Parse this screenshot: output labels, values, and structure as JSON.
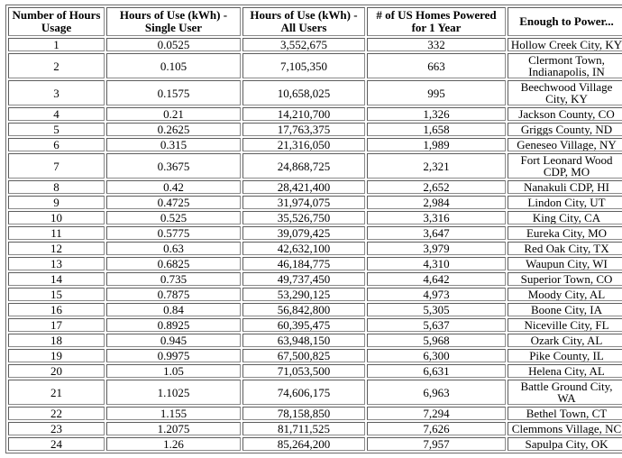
{
  "chart_data": {
    "type": "table",
    "title": "",
    "columns": [
      "Number of Hours Usage",
      "Hours of Use (kWh) - Single User",
      "Hours of Use (kWh) - All Users",
      "# of US Homes Powered for 1 Year",
      "Enough to Power..."
    ],
    "rows": [
      [
        "1",
        "0.0525",
        "3,552,675",
        "332",
        "Hollow Creek City, KY"
      ],
      [
        "2",
        "0.105",
        "7,105,350",
        "663",
        "Clermont Town, Indianapolis, IN"
      ],
      [
        "3",
        "0.1575",
        "10,658,025",
        "995",
        "Beechwood Village City, KY"
      ],
      [
        "4",
        "0.21",
        "14,210,700",
        "1,326",
        "Jackson County, CO"
      ],
      [
        "5",
        "0.2625",
        "17,763,375",
        "1,658",
        "Griggs County, ND"
      ],
      [
        "6",
        "0.315",
        "21,316,050",
        "1,989",
        "Geneseo Village, NY"
      ],
      [
        "7",
        "0.3675",
        "24,868,725",
        "2,321",
        "Fort Leonard Wood CDP, MO"
      ],
      [
        "8",
        "0.42",
        "28,421,400",
        "2,652",
        "Nanakuli CDP, HI"
      ],
      [
        "9",
        "0.4725",
        "31,974,075",
        "2,984",
        "Lindon City, UT"
      ],
      [
        "10",
        "0.525",
        "35,526,750",
        "3,316",
        "King City, CA"
      ],
      [
        "11",
        "0.5775",
        "39,079,425",
        "3,647",
        "Eureka City, MO"
      ],
      [
        "12",
        "0.63",
        "42,632,100",
        "3,979",
        "Red Oak City, TX"
      ],
      [
        "13",
        "0.6825",
        "46,184,775",
        "4,310",
        "Waupun City, WI"
      ],
      [
        "14",
        "0.735",
        "49,737,450",
        "4,642",
        "Superior Town, CO"
      ],
      [
        "15",
        "0.7875",
        "53,290,125",
        "4,973",
        "Moody City, AL"
      ],
      [
        "16",
        "0.84",
        "56,842,800",
        "5,305",
        "Boone City, IA"
      ],
      [
        "17",
        "0.8925",
        "60,395,475",
        "5,637",
        "Niceville City, FL"
      ],
      [
        "18",
        "0.945",
        "63,948,150",
        "5,968",
        "Ozark City, AL"
      ],
      [
        "19",
        "0.9975",
        "67,500,825",
        "6,300",
        "Pike County, IL"
      ],
      [
        "20",
        "1.05",
        "71,053,500",
        "6,631",
        "Helena City, AL"
      ],
      [
        "21",
        "1.1025",
        "74,606,175",
        "6,963",
        "Battle Ground City, WA"
      ],
      [
        "22",
        "1.155",
        "78,158,850",
        "7,294",
        "Bethel Town, CT"
      ],
      [
        "23",
        "1.2075",
        "81,711,525",
        "7,626",
        "Clemmons Village, NC"
      ],
      [
        "24",
        "1.26",
        "85,264,200",
        "7,957",
        "Sapulpa City, OK"
      ]
    ],
    "layout_hints": {
      "grid": "on",
      "cell_alignment": "center",
      "header_style": "bold"
    }
  }
}
